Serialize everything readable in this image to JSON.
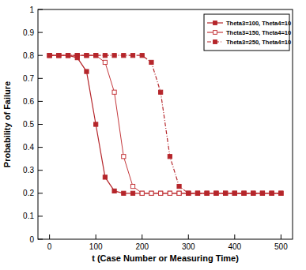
{
  "chart_data": {
    "type": "line",
    "x_label": "t (Case Number or Measuring Time)",
    "y_label": "Probability of Failure",
    "x": [
      0,
      20,
      40,
      60,
      80,
      100,
      120,
      140,
      160,
      180,
      200,
      220,
      240,
      260,
      280,
      300,
      320,
      340,
      360,
      380,
      400,
      420,
      440,
      460,
      480,
      500
    ],
    "series": [
      {
        "name": "Theta3=100, Theta4=10",
        "color": "#b5262b",
        "marker": "square",
        "line_style": "solid",
        "values": [
          0.8,
          0.8,
          0.8,
          0.79,
          0.73,
          0.5,
          0.27,
          0.21,
          0.2,
          0.2,
          0.2,
          0.2,
          0.2,
          0.2,
          0.2,
          0.2,
          0.2,
          0.2,
          0.2,
          0.2,
          0.2,
          0.2,
          0.2,
          0.2,
          0.2,
          0.2
        ]
      },
      {
        "name": "Theta3=150, Theta4=10",
        "color": "#c4383c",
        "marker": "open-square",
        "line_style": "solid",
        "values": [
          0.8,
          0.8,
          0.8,
          0.8,
          0.8,
          0.8,
          0.77,
          0.64,
          0.36,
          0.23,
          0.2,
          0.2,
          0.2,
          0.2,
          0.2,
          0.2,
          0.2,
          0.2,
          0.2,
          0.2,
          0.2,
          0.2,
          0.2,
          0.2,
          0.2,
          0.2
        ]
      },
      {
        "name": "Theta3=250, Theta4=10",
        "color": "#b5262b",
        "marker": "square",
        "line_style": "dashdot",
        "values": [
          0.8,
          0.8,
          0.8,
          0.8,
          0.8,
          0.8,
          0.8,
          0.8,
          0.8,
          0.8,
          0.8,
          0.77,
          0.64,
          0.36,
          0.23,
          0.2,
          0.2,
          0.2,
          0.2,
          0.2,
          0.2,
          0.2,
          0.2,
          0.2,
          0.2,
          0.2
        ]
      }
    ],
    "xlim": [
      -25,
      525
    ],
    "xticks": [
      0,
      100,
      200,
      300,
      400,
      500
    ],
    "ylim": [
      0,
      1
    ],
    "yticks": [
      0,
      0.1,
      0.2,
      0.3,
      0.4,
      0.5,
      0.6,
      0.7,
      0.8,
      0.9,
      1
    ],
    "legend": "top-right",
    "grid": false
  }
}
